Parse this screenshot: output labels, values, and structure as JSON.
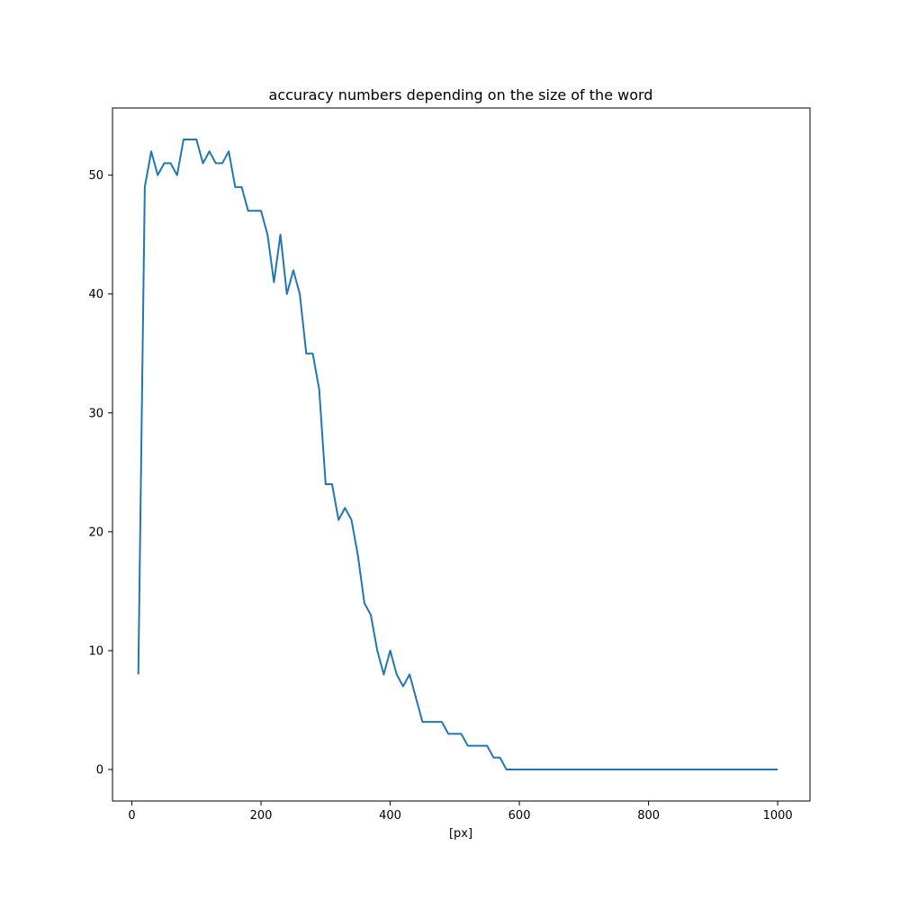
{
  "chart_data": {
    "type": "line",
    "title": "accuracy numbers depending on the size of the word",
    "xlabel": "[px]",
    "ylabel": "",
    "xlim": [
      -30,
      1050
    ],
    "ylim": [
      -2.65,
      55.65
    ],
    "xticks": [
      0,
      200,
      400,
      600,
      800,
      1000
    ],
    "yticks": [
      0,
      10,
      20,
      30,
      40,
      50
    ],
    "grid": false,
    "series": [
      {
        "color": "#1f77b4",
        "x": [
          10,
          20,
          30,
          40,
          50,
          60,
          70,
          80,
          90,
          100,
          110,
          120,
          130,
          140,
          150,
          160,
          170,
          180,
          190,
          200,
          210,
          220,
          230,
          240,
          250,
          260,
          270,
          280,
          290,
          300,
          310,
          320,
          330,
          340,
          350,
          360,
          370,
          380,
          390,
          400,
          410,
          420,
          430,
          440,
          450,
          460,
          470,
          480,
          490,
          500,
          510,
          520,
          530,
          540,
          550,
          560,
          570,
          580,
          590,
          600,
          1000
        ],
        "y": [
          8,
          49,
          52,
          50,
          51,
          51,
          50,
          53,
          53,
          53,
          51,
          52,
          51,
          51,
          52,
          49,
          49,
          47,
          47,
          47,
          45,
          41,
          45,
          40,
          42,
          40,
          35,
          35,
          32,
          24,
          24,
          21,
          22,
          21,
          18,
          14,
          13,
          10,
          8,
          10,
          8,
          7,
          8,
          6,
          4,
          4,
          4,
          4,
          3,
          3,
          3,
          2,
          2,
          2,
          2,
          1,
          1,
          0,
          0,
          0,
          0
        ]
      }
    ]
  }
}
